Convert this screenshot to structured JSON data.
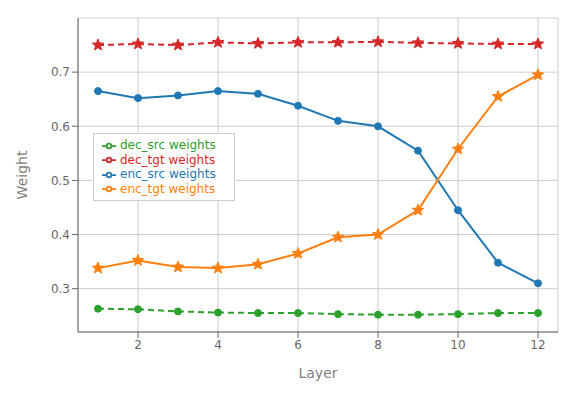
{
  "chart_data": {
    "type": "line",
    "xlabel": "Layer",
    "ylabel": "Weight",
    "x": [
      1,
      2,
      3,
      4,
      5,
      6,
      7,
      8,
      9,
      10,
      11,
      12
    ],
    "series": [
      {
        "name": "enc_src weights",
        "color": "#1f77b4",
        "marker": "circle",
        "line_style": "solid",
        "values": [
          0.665,
          0.652,
          0.657,
          0.665,
          0.66,
          0.638,
          0.61,
          0.6,
          0.555,
          0.445,
          0.348,
          0.31
        ]
      },
      {
        "name": "enc_tgt weights",
        "color": "#ff7f0e",
        "marker": "star",
        "line_style": "solid",
        "values": [
          0.338,
          0.352,
          0.34,
          0.338,
          0.345,
          0.365,
          0.395,
          0.4,
          0.445,
          0.558,
          0.655,
          0.695
        ]
      },
      {
        "name": "dec_src weights",
        "color": "#2ca02c",
        "marker": "circle",
        "line_style": "dashed",
        "values": [
          0.263,
          0.262,
          0.258,
          0.256,
          0.255,
          0.255,
          0.253,
          0.252,
          0.252,
          0.253,
          0.255,
          0.255
        ]
      },
      {
        "name": "dec_tgt weights",
        "color": "#d62728",
        "marker": "star",
        "line_style": "dashed",
        "values": [
          0.75,
          0.752,
          0.75,
          0.755,
          0.753,
          0.755,
          0.755,
          0.756,
          0.754,
          0.753,
          0.752,
          0.752
        ]
      }
    ],
    "xlim": [
      0.5,
      12.5
    ],
    "ylim": [
      0.22,
      0.8
    ],
    "xticks": [
      2,
      4,
      6,
      8,
      10,
      12
    ],
    "yticks": [
      0.3,
      0.4,
      0.5,
      0.6,
      0.7
    ],
    "grid": true,
    "legend": "left"
  }
}
